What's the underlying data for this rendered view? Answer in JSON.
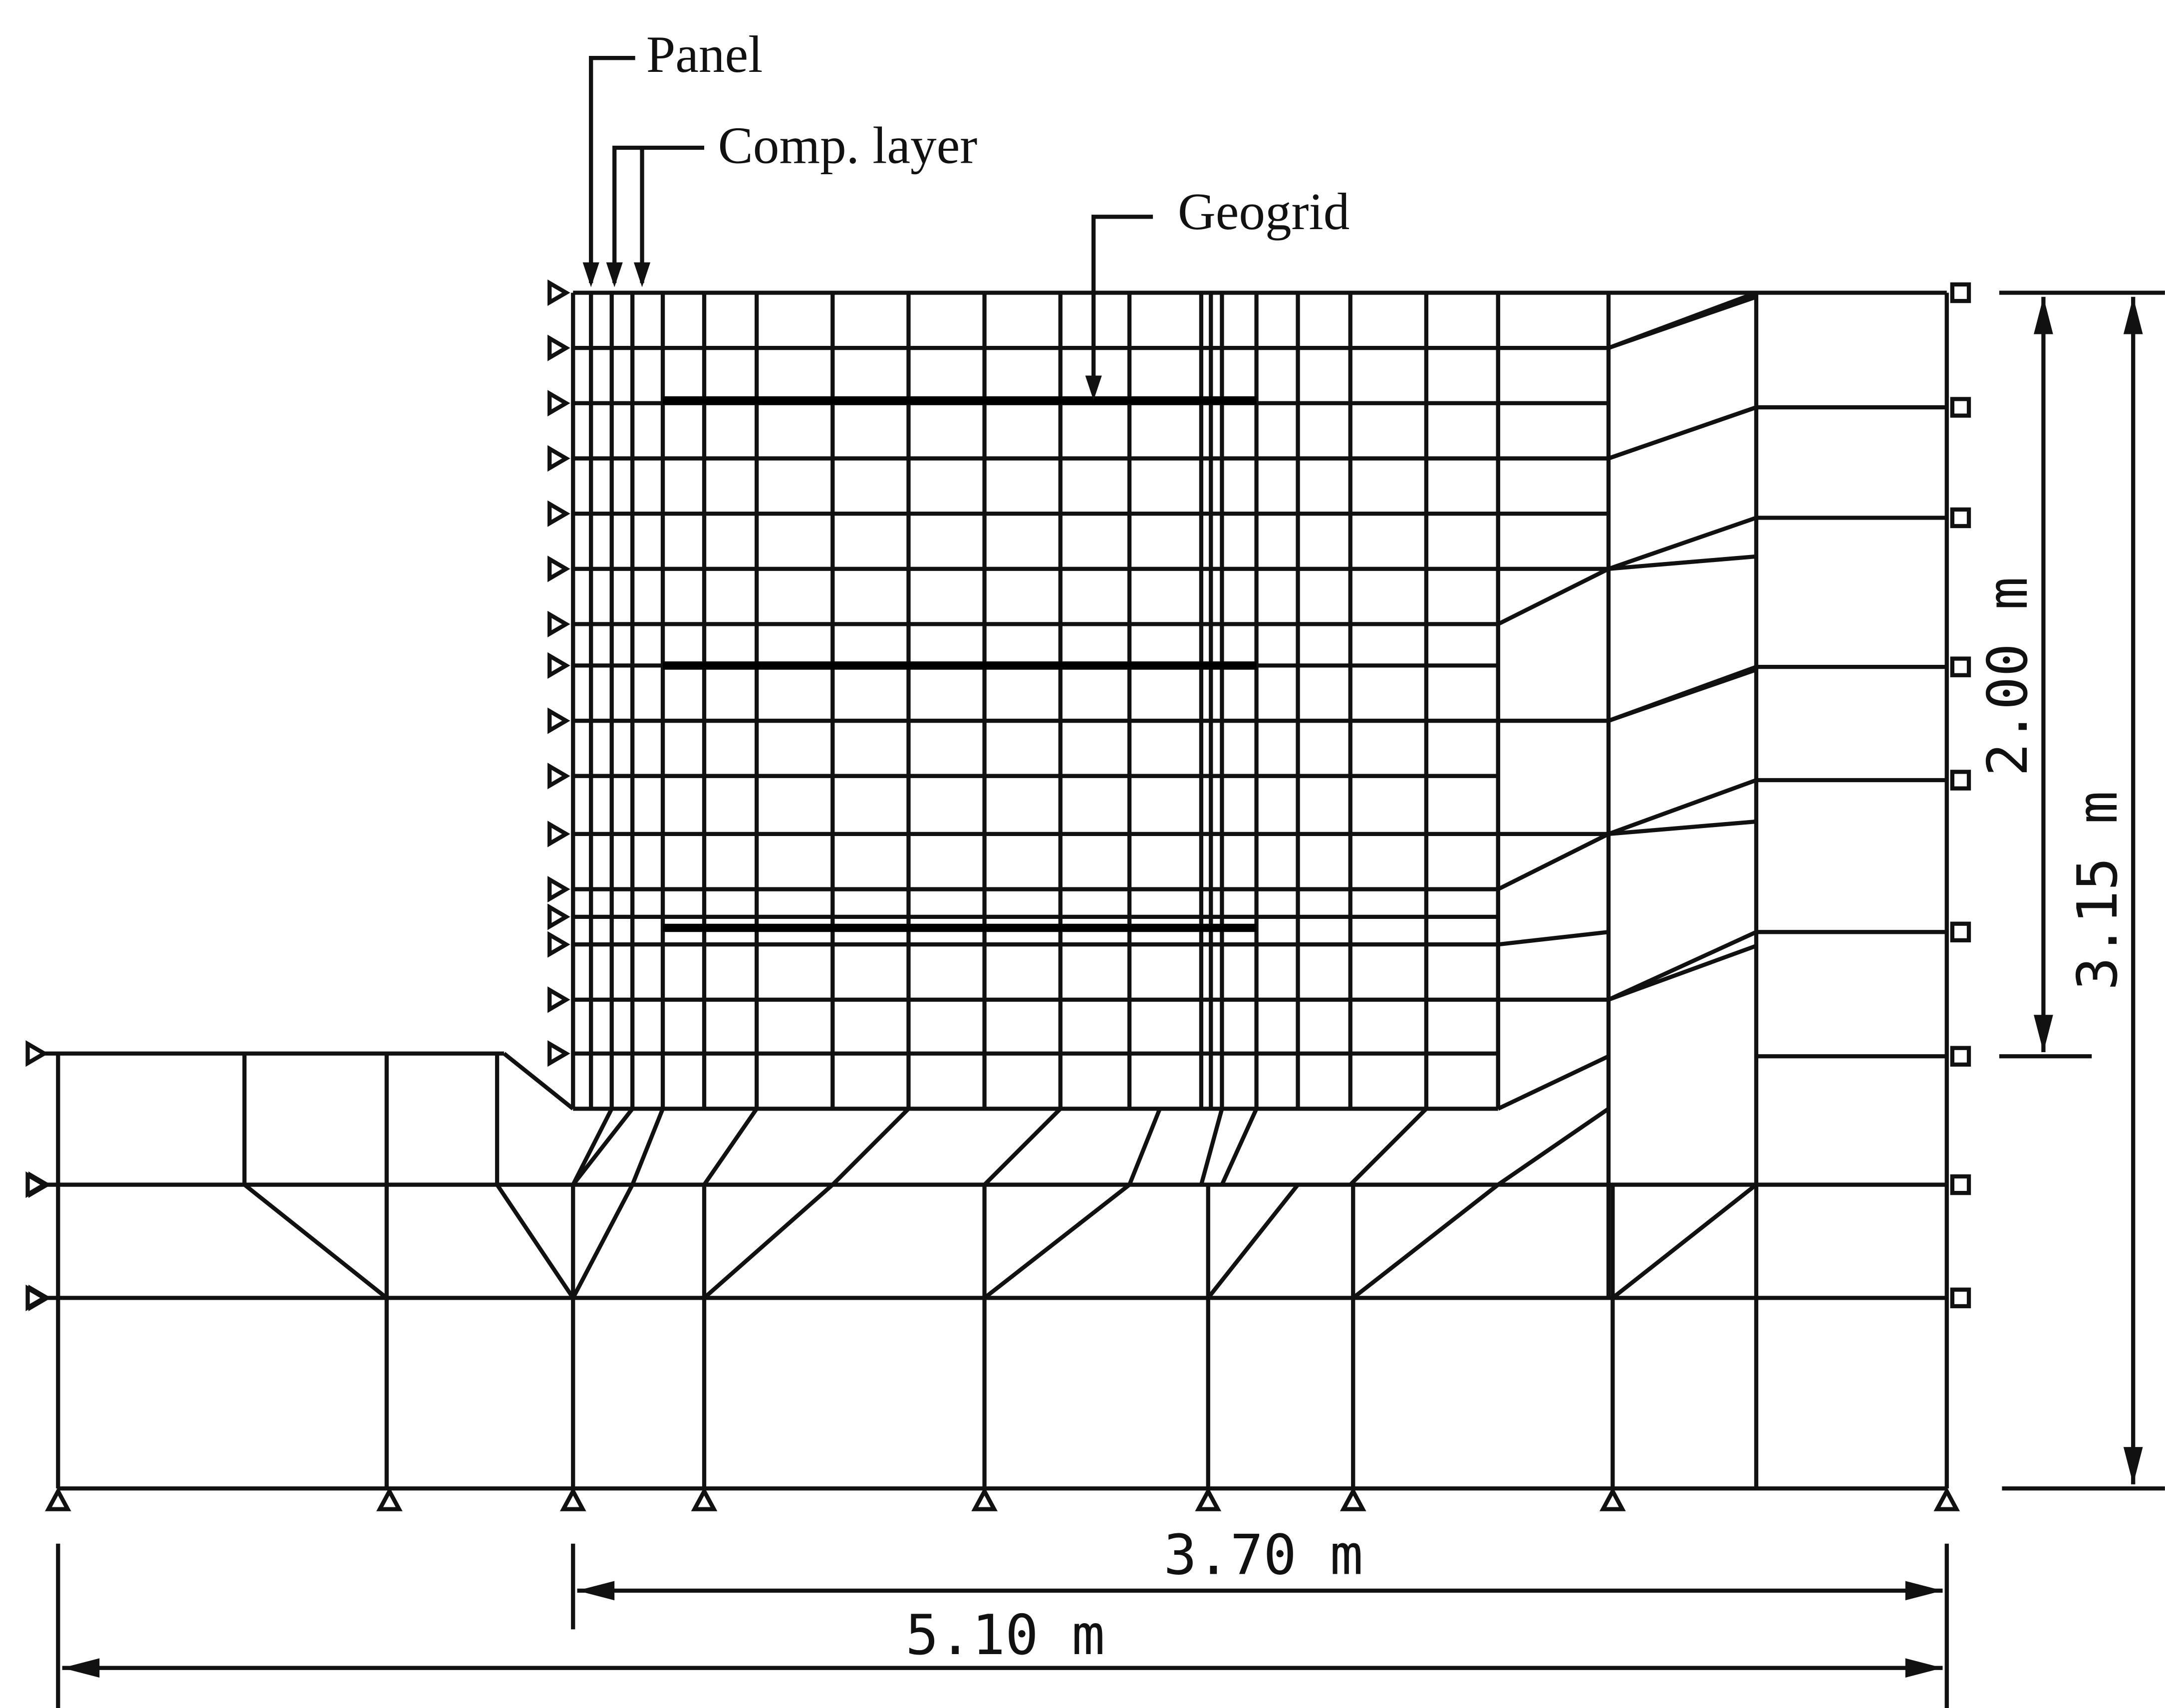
{
  "labels": {
    "panel": "Panel",
    "comp_layer": "Comp. layer",
    "geogrid": "Geogrid"
  },
  "dimensions": {
    "wall_width": "3.70 m",
    "total_width": "5.10 m",
    "wall_height": "2.00 m",
    "total_height": "3.15 m"
  }
}
